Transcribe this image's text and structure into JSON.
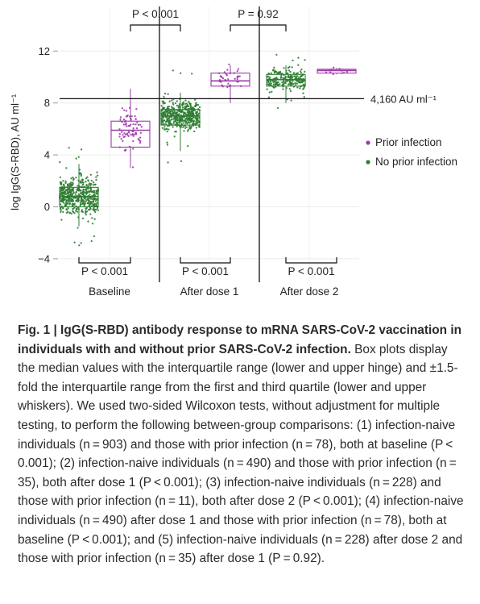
{
  "chart_data": {
    "type": "box-strip",
    "ylabel": "log IgG(S-RBD), AU ml⁻¹",
    "yticks": [
      12,
      8,
      4,
      0,
      -4
    ],
    "ylim": [
      -4.6,
      14.2
    ],
    "groups": [
      "Baseline",
      "After dose 1",
      "After dose 2"
    ],
    "series": [
      {
        "name": "Prior infection",
        "color": "#9b3ba8"
      },
      {
        "name": "No prior infection",
        "color": "#2e7d32"
      }
    ],
    "boxes": [
      {
        "group": "Baseline",
        "series": "No prior infection",
        "n": 903,
        "whisker_low": -1.5,
        "q1": 0.0,
        "median": 0.8,
        "q3": 1.5,
        "whisker_high": 3.3
      },
      {
        "group": "Baseline",
        "series": "Prior infection",
        "n": 78,
        "whisker_low": 3.0,
        "q1": 4.6,
        "median": 5.9,
        "q3": 6.6,
        "whisker_high": 9.1
      },
      {
        "group": "After dose 1",
        "series": "No prior infection",
        "n": 490,
        "whisker_low": 4.3,
        "q1": 6.3,
        "median": 7.0,
        "q3": 7.5,
        "whisker_high": 8.8
      },
      {
        "group": "After dose 1",
        "series": "Prior infection",
        "n": 35,
        "whisker_low": 8.0,
        "q1": 9.3,
        "median": 9.7,
        "q3": 10.3,
        "whisker_high": 10.9
      },
      {
        "group": "After dose 2",
        "series": "No prior infection",
        "n": 228,
        "whisker_low": 8.0,
        "q1": 9.3,
        "median": 9.8,
        "q3": 10.2,
        "whisker_high": 10.9
      },
      {
        "group": "After dose 2",
        "series": "Prior infection",
        "n": 11,
        "whisker_low": 10.2,
        "q1": 10.3,
        "median": 10.5,
        "q3": 10.6,
        "whisker_high": 10.7
      }
    ],
    "threshold": {
      "value": 8.33,
      "label": "4,160 AU ml⁻¹"
    },
    "comparisons_top": [
      {
        "label": "P < 0.001",
        "between": [
          "Baseline: Prior infection",
          "After dose 1: No prior infection"
        ]
      },
      {
        "label": "P = 0.92",
        "between": [
          "After dose 1: Prior infection",
          "After dose 2: No prior infection"
        ]
      }
    ],
    "comparisons_bottom": [
      {
        "group": "Baseline",
        "label": "P < 0.001"
      },
      {
        "group": "After dose 1",
        "label": "P < 0.001"
      },
      {
        "group": "After dose 2",
        "label": "P < 0.001"
      }
    ],
    "grid": true,
    "legend_position": "right"
  },
  "caption": {
    "lead": "Fig. 1 | IgG(S-RBD) antibody response to mRNA SARS-CoV-2 vaccination in individuals with and without prior SARS-CoV-2 infection.",
    "body": " Box plots display the median values with the interquartile range (lower and upper hinge) and ±1.5-fold the interquartile range from the first and third quartile (lower and upper whiskers). We used two-sided Wilcoxon tests, without adjustment for multiple testing, to perform the following between-group comparisons: (1) infection-naive individuals (n = 903) and those with prior infection (n = 78), both at baseline (P < 0.001); (2) infection-naive individuals (n = 490) and those with prior infection (n = 35), both after dose 1 (P < 0.001); (3) infection-naive individuals (n = 228) and those with prior infection (n = 11), both after dose 2 (P < 0.001); (4) infection-naive individuals (n = 490) after dose 1 and those with prior infection (n = 78), both at baseline (P < 0.001); and (5) infection-naive individuals (n = 228) after dose 2 and those with prior infection (n = 35) after dose 1 (P = 0.92)."
  }
}
